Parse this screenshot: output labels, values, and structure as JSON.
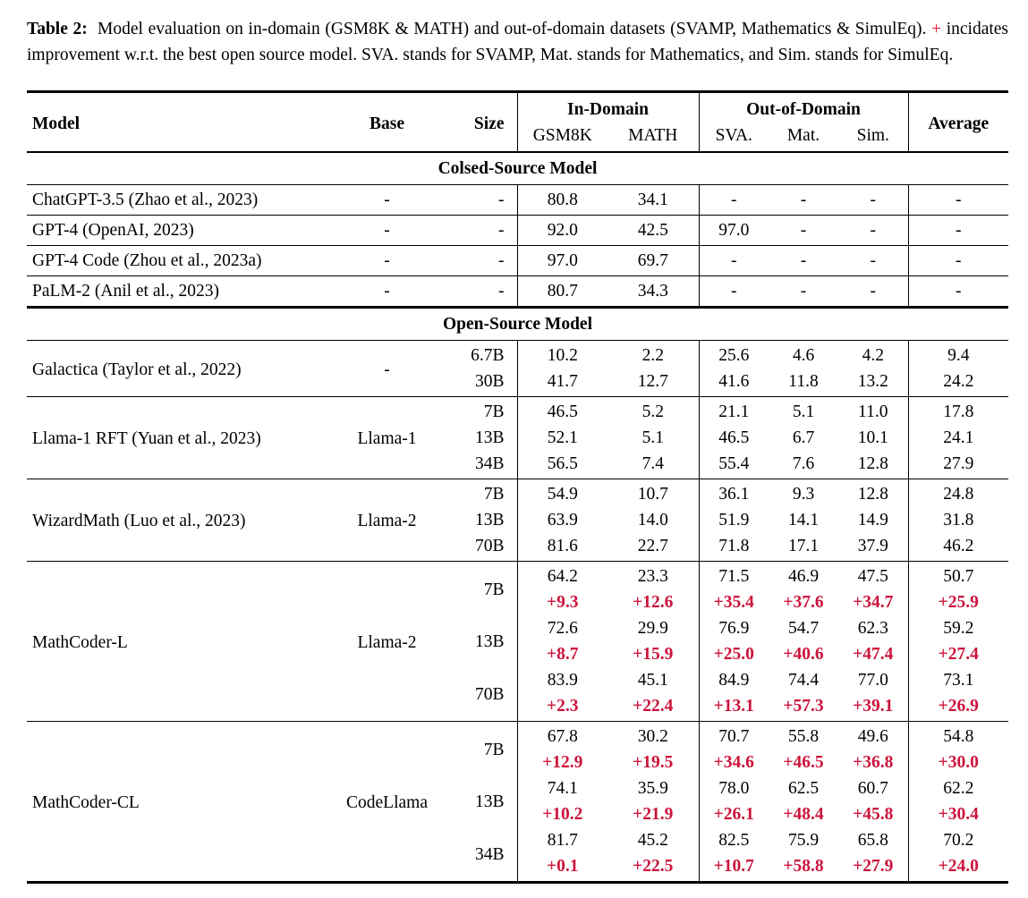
{
  "caption": {
    "label": "Table 2:",
    "before_plus": "Model evaluation on in-domain (GSM8K & MATH) and out-of-domain datasets (SVAMP, Mathematics & SimulEq).",
    "plus": "+",
    "after_plus": "incidates improvement w.r.t. the best open source model. SVA. stands for SVAMP, Mat. stands for Mathematics, and Sim. stands for SimulEq."
  },
  "colors": {
    "accent_red": "#cc143c",
    "caption_plus_red": "#e0162b",
    "text": "#000000",
    "background": "#ffffff"
  },
  "table": {
    "headers": {
      "model": "Model",
      "base": "Base",
      "size": "Size",
      "in_domain": "In-Domain",
      "out_of_domain": "Out-of-Domain",
      "average": "Average",
      "gsm8k": "GSM8K",
      "math": "MATH",
      "sva": "SVA.",
      "mat": "Mat.",
      "sim": "Sim."
    },
    "sections": [
      {
        "title": "Colsed-Source Model",
        "groups": [
          {
            "model": "ChatGPT-3.5 (Zhao et al., 2023)",
            "base": "-",
            "rows": [
              {
                "size": "-",
                "values": [
                  "80.8",
                  "34.1",
                  "-",
                  "-",
                  "-",
                  "-"
                ]
              }
            ]
          },
          {
            "model": "GPT-4 (OpenAI, 2023)",
            "base": "-",
            "rows": [
              {
                "size": "-",
                "values": [
                  "92.0",
                  "42.5",
                  "97.0",
                  "-",
                  "-",
                  "-"
                ]
              }
            ]
          },
          {
            "model": "GPT-4 Code (Zhou et al., 2023a)",
            "base": "-",
            "rows": [
              {
                "size": "-",
                "values": [
                  "97.0",
                  "69.7",
                  "-",
                  "-",
                  "-",
                  "-"
                ]
              }
            ]
          },
          {
            "model": "PaLM-2 (Anil et al., 2023)",
            "base": "-",
            "rows": [
              {
                "size": "-",
                "values": [
                  "80.7",
                  "34.3",
                  "-",
                  "-",
                  "-",
                  "-"
                ]
              }
            ]
          }
        ]
      },
      {
        "title": "Open-Source Model",
        "groups": [
          {
            "model": "Galactica (Taylor et al., 2022)",
            "base": "-",
            "rows": [
              {
                "size": "6.7B",
                "values": [
                  "10.2",
                  "2.2",
                  "25.6",
                  "4.6",
                  "4.2",
                  "9.4"
                ]
              },
              {
                "size": "30B",
                "values": [
                  "41.7",
                  "12.7",
                  "41.6",
                  "11.8",
                  "13.2",
                  "24.2"
                ]
              }
            ]
          },
          {
            "model": "Llama-1 RFT (Yuan et al., 2023)",
            "base": "Llama-1",
            "rows": [
              {
                "size": "7B",
                "values": [
                  "46.5",
                  "5.2",
                  "21.1",
                  "5.1",
                  "11.0",
                  "17.8"
                ]
              },
              {
                "size": "13B",
                "values": [
                  "52.1",
                  "5.1",
                  "46.5",
                  "6.7",
                  "10.1",
                  "24.1"
                ]
              },
              {
                "size": "34B",
                "values": [
                  "56.5",
                  "7.4",
                  "55.4",
                  "7.6",
                  "12.8",
                  "27.9"
                ]
              }
            ]
          },
          {
            "model": "WizardMath (Luo et al., 2023)",
            "base": "Llama-2",
            "rows": [
              {
                "size": "7B",
                "values": [
                  "54.9",
                  "10.7",
                  "36.1",
                  "9.3",
                  "12.8",
                  "24.8"
                ]
              },
              {
                "size": "13B",
                "values": [
                  "63.9",
                  "14.0",
                  "51.9",
                  "14.1",
                  "14.9",
                  "31.8"
                ]
              },
              {
                "size": "70B",
                "values": [
                  "81.6",
                  "22.7",
                  "71.8",
                  "17.1",
                  "37.9",
                  "46.2"
                ]
              }
            ]
          },
          {
            "model": "MathCoder-L",
            "base": "Llama-2",
            "rows": [
              {
                "size": "7B",
                "values": [
                  "64.2",
                  "23.3",
                  "71.5",
                  "46.9",
                  "47.5",
                  "50.7"
                ],
                "deltas": [
                  "+9.3",
                  "+12.6",
                  "+35.4",
                  "+37.6",
                  "+34.7",
                  "+25.9"
                ]
              },
              {
                "size": "13B",
                "values": [
                  "72.6",
                  "29.9",
                  "76.9",
                  "54.7",
                  "62.3",
                  "59.2"
                ],
                "deltas": [
                  "+8.7",
                  "+15.9",
                  "+25.0",
                  "+40.6",
                  "+47.4",
                  "+27.4"
                ]
              },
              {
                "size": "70B",
                "values": [
                  "83.9",
                  "45.1",
                  "84.9",
                  "74.4",
                  "77.0",
                  "73.1"
                ],
                "deltas": [
                  "+2.3",
                  "+22.4",
                  "+13.1",
                  "+57.3",
                  "+39.1",
                  "+26.9"
                ]
              }
            ]
          },
          {
            "model": "MathCoder-CL",
            "base": "CodeLlama",
            "rows": [
              {
                "size": "7B",
                "values": [
                  "67.8",
                  "30.2",
                  "70.7",
                  "55.8",
                  "49.6",
                  "54.8"
                ],
                "deltas": [
                  "+12.9",
                  "+19.5",
                  "+34.6",
                  "+46.5",
                  "+36.8",
                  "+30.0"
                ]
              },
              {
                "size": "13B",
                "values": [
                  "74.1",
                  "35.9",
                  "78.0",
                  "62.5",
                  "60.7",
                  "62.2"
                ],
                "deltas": [
                  "+10.2",
                  "+21.9",
                  "+26.1",
                  "+48.4",
                  "+45.8",
                  "+30.4"
                ]
              },
              {
                "size": "34B",
                "values": [
                  "81.7",
                  "45.2",
                  "82.5",
                  "75.9",
                  "65.8",
                  "70.2"
                ],
                "deltas": [
                  "+0.1",
                  "+22.5",
                  "+10.7",
                  "+58.8",
                  "+27.9",
                  "+24.0"
                ]
              }
            ]
          }
        ]
      }
    ]
  }
}
